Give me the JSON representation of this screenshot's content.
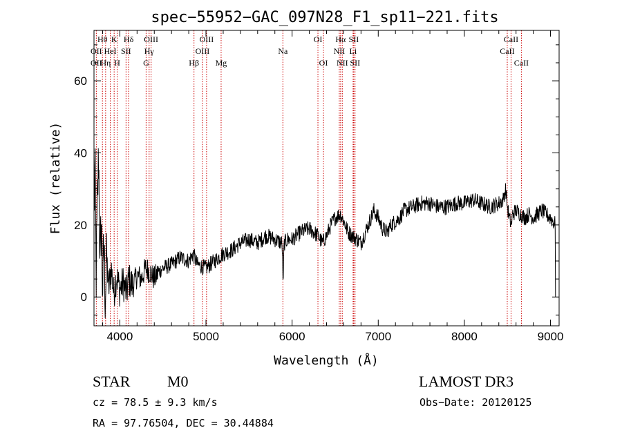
{
  "chart_data": {
    "type": "line",
    "title": "spec−55952−GAC_097N28_F1_sp11−221.fits",
    "xlabel": "Wavelength (Å)",
    "ylabel": "Flux (relative)",
    "xlim": [
      3700,
      9100
    ],
    "ylim": [
      -8,
      74
    ],
    "xticks": [
      4000,
      5000,
      6000,
      7000,
      8000,
      9000
    ],
    "yticks": [
      0,
      20,
      40,
      60
    ],
    "grid": false,
    "series": [
      {
        "name": "flux",
        "color": "#000000",
        "anchors_x": [
          3700,
          3712,
          3725,
          3740,
          3755,
          3770,
          3785,
          3800,
          3815,
          3830,
          3850,
          3870,
          3900,
          3930,
          3960,
          4000,
          4040,
          4080,
          4100,
          4150,
          4200,
          4250,
          4300,
          4350,
          4400,
          4450,
          4500,
          4600,
          4700,
          4800,
          4850,
          4900,
          5000,
          5100,
          5200,
          5300,
          5400,
          5500,
          5600,
          5700,
          5800,
          5880,
          5890,
          5896,
          5902,
          5910,
          5950,
          6000,
          6100,
          6200,
          6300,
          6350,
          6400,
          6450,
          6500,
          6560,
          6600,
          6650,
          6700,
          6750,
          6800,
          6850,
          6900,
          6950,
          7000,
          7050,
          7100,
          7150,
          7200,
          7250,
          7300,
          7400,
          7500,
          7600,
          7700,
          7800,
          7900,
          8000,
          8100,
          8200,
          8300,
          8400,
          8450,
          8480,
          8500,
          8520,
          8545,
          8560,
          8600,
          8650,
          8700,
          8750,
          8800,
          8850,
          8900,
          8950,
          9000,
          9030,
          9060
        ],
        "anchors_y": [
          20,
          36,
          5,
          26,
          40,
          8,
          22,
          2,
          14,
          1,
          10,
          2,
          8,
          1,
          6,
          2,
          4,
          1,
          5,
          3,
          6,
          5,
          8,
          7,
          5,
          7,
          8,
          9,
          11,
          10,
          12,
          9,
          8,
          10,
          12,
          13,
          15,
          16,
          15,
          17,
          16,
          15,
          11,
          2,
          11,
          15,
          16,
          16,
          18,
          19,
          17,
          15,
          17,
          20,
          22,
          23,
          21,
          18,
          17,
          16,
          15,
          18,
          21,
          24,
          22,
          19,
          18,
          20,
          21,
          22,
          24,
          25,
          26,
          26,
          25,
          25,
          26,
          26,
          27,
          26,
          25,
          26,
          27,
          30,
          25,
          22,
          20,
          23,
          24,
          23,
          22,
          23,
          22,
          23,
          24,
          23,
          22,
          21,
          20
        ],
        "noise_envelope": "high scatter below 4450 Å (±4 to ±10), moderate (±2.5) across the rest of the spectrum"
      }
    ],
    "spectral_lines": [
      {
        "label": "Hθ",
        "x": 3798,
        "row": 0
      },
      {
        "label": "OII",
        "x": 3727,
        "row": 1
      },
      {
        "label": "OII",
        "x": 3727,
        "row": 2
      },
      {
        "label": "Hη",
        "x": 3835,
        "row": 2
      },
      {
        "label": "HeI",
        "x": 3889,
        "row": 1
      },
      {
        "label": "K",
        "x": 3934,
        "row": 0
      },
      {
        "label": "H",
        "x": 3969,
        "row": 2
      },
      {
        "label": "SII",
        "x": 4072,
        "row": 1
      },
      {
        "label": "Hδ",
        "x": 4102,
        "row": 0
      },
      {
        "label": "OIII",
        "x": 4363,
        "row": 0
      },
      {
        "label": "Hγ",
        "x": 4340,
        "row": 1
      },
      {
        "label": "G",
        "x": 4305,
        "row": 2
      },
      {
        "label": "Hβ",
        "x": 4861,
        "row": 2
      },
      {
        "label": "OIII",
        "x": 4959,
        "row": 1
      },
      {
        "label": "OIII",
        "x": 5007,
        "row": 0
      },
      {
        "label": "Mg",
        "x": 5176,
        "row": 2
      },
      {
        "label": "Na",
        "x": 5893,
        "row": 1
      },
      {
        "label": "OI",
        "x": 6300,
        "row": 0
      },
      {
        "label": "OI",
        "x": 6364,
        "row": 2
      },
      {
        "label": "NII",
        "x": 6548,
        "row": 1
      },
      {
        "label": "Hα",
        "x": 6563,
        "row": 0
      },
      {
        "label": "NII",
        "x": 6583,
        "row": 2
      },
      {
        "label": "SII",
        "x": 6716,
        "row": 0
      },
      {
        "label": "Li",
        "x": 6708,
        "row": 1
      },
      {
        "label": "SII",
        "x": 6731,
        "row": 2
      },
      {
        "label": "CaII",
        "x": 8498,
        "row": 1
      },
      {
        "label": "CaII",
        "x": 8542,
        "row": 0
      },
      {
        "label": "CaII",
        "x": 8662,
        "row": 2
      }
    ]
  },
  "info": {
    "object_class": "STAR",
    "subclass": "M0",
    "survey": "LAMOST DR3",
    "redshift_line": "cz = 78.5 ± 9.3 km/s",
    "obs_date": "Obs−Date: 20120125",
    "coords": "RA =  97.76504, DEC =  30.44884"
  },
  "colors": {
    "line_marker": "#cc0000",
    "spectrum": "#000000",
    "axes": "#000000"
  }
}
